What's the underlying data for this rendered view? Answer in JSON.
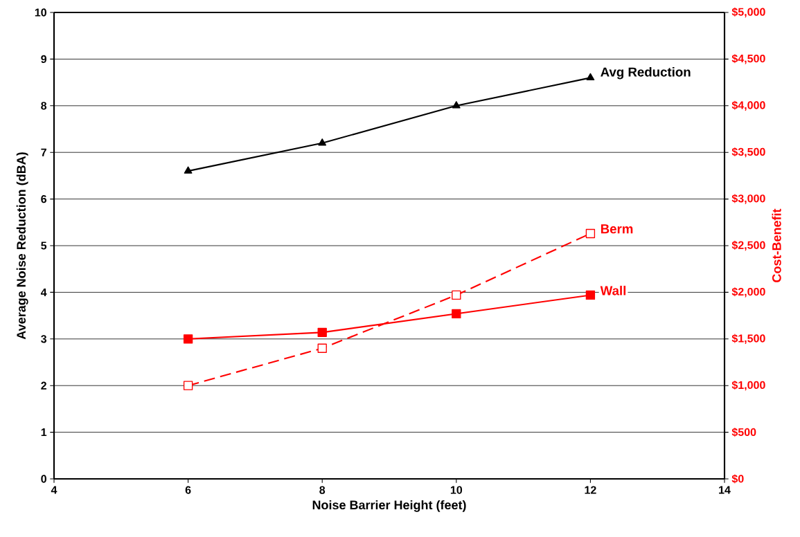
{
  "chart_data": {
    "type": "line",
    "xlabel": "Noise Barrier Height (feet)",
    "ylabel": "Average Noise Reduction (dBA)",
    "y2label": "Cost-Benefit",
    "x": [
      6,
      8,
      10,
      12
    ],
    "series": [
      {
        "name": "Avg Reduction",
        "color": "#000000",
        "values": [
          6.6,
          7.2,
          8.0,
          8.6
        ],
        "marker": "triangle",
        "line_style": "solid"
      },
      {
        "name": "Berm",
        "color": "#ff0000",
        "values": [
          1000,
          1400,
          1970,
          2630
        ],
        "axis": "y2",
        "marker": "square",
        "line_style": "dashed"
      },
      {
        "name": "Wall",
        "color": "#ff0000",
        "values": [
          1500,
          1570,
          1770,
          1970
        ],
        "axis": "y2",
        "marker": "square",
        "line_style": "solid"
      }
    ],
    "xlim": [
      4,
      14
    ],
    "xticks": [
      4,
      6,
      8,
      10,
      12,
      14
    ],
    "ylim": [
      0,
      10
    ],
    "yticks": [
      0,
      1,
      2,
      3,
      4,
      5,
      6,
      7,
      8,
      9,
      10
    ],
    "y2lim": [
      0,
      5000
    ],
    "y2ticks": [
      {
        "value": 0,
        "label": "$0"
      },
      {
        "value": 500,
        "label": "$500"
      },
      {
        "value": 1000,
        "label": "$1,000"
      },
      {
        "value": 1500,
        "label": "$1,500"
      },
      {
        "value": 2000,
        "label": "$2,000"
      },
      {
        "value": 2500,
        "label": "$2,500"
      },
      {
        "value": 3000,
        "label": "$3,000"
      },
      {
        "value": 3500,
        "label": "$3,500"
      },
      {
        "value": 4000,
        "label": "$4,000"
      },
      {
        "value": 4500,
        "label": "$4,500"
      },
      {
        "value": 5000,
        "label": "$5,000"
      }
    ],
    "grid": "y"
  }
}
